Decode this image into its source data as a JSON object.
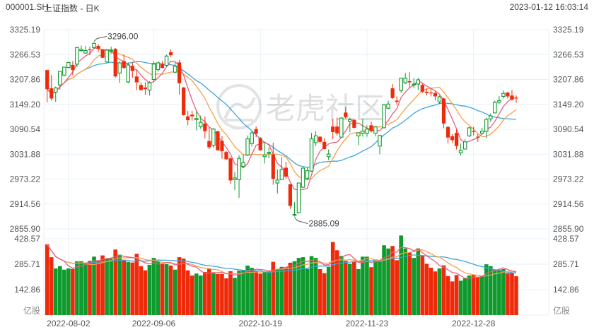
{
  "header": {
    "symbol": "000001.SH",
    "name": "上证指数 - 日K",
    "timestamp": "2023-01-12 16:03:14"
  },
  "watermark": "老虎社区",
  "colors": {
    "up": "#0e9a2c",
    "down": "#ee2a0a",
    "ma_short": "#e8607a",
    "ma_mid": "#f7a04a",
    "ma_long": "#3fa3e0",
    "grid": "#e6f1f8",
    "axis_text": "#555555"
  },
  "chart_data": {
    "type": "candlestick",
    "price_axis": {
      "ticks": [
        "3325.19",
        "3266.53",
        "3207.86",
        "3149.20",
        "3090.54",
        "3031.88",
        "2973.22",
        "2914.56",
        "2855.90"
      ],
      "range": [
        2855.9,
        3325.19
      ]
    },
    "volume_axis": {
      "ticks": [
        "428.57",
        "285.71",
        "142.86"
      ],
      "unit": "亿股",
      "range": [
        0,
        571.43
      ]
    },
    "x_labels": [
      {
        "index": 5,
        "label": "2022-08-02"
      },
      {
        "index": 25,
        "label": "2022-09-06"
      },
      {
        "index": 50,
        "label": "2022-10-19"
      },
      {
        "index": 75,
        "label": "2022-11-23"
      },
      {
        "index": 100,
        "label": "2022-12-28"
      }
    ],
    "annotations": [
      {
        "index": 11,
        "value": 3296.0,
        "label": "3296.00",
        "kind": "high"
      },
      {
        "index": 58,
        "value": 2885.09,
        "label": "2885.09",
        "kind": "low"
      }
    ],
    "candles_ohlc": [
      [
        3230,
        3231,
        3154,
        3185
      ],
      [
        3187,
        3218,
        3158,
        3163
      ],
      [
        3178,
        3191,
        3155,
        3188
      ],
      [
        3195,
        3227,
        3184,
        3227
      ],
      [
        3218,
        3238,
        3215,
        3237
      ],
      [
        3236,
        3249,
        3234,
        3248
      ],
      [
        3242,
        3251,
        3218,
        3230
      ],
      [
        3244,
        3284,
        3237,
        3283
      ],
      [
        3276,
        3288,
        3273,
        3279
      ],
      [
        3270,
        3287,
        3269,
        3276
      ],
      [
        3279,
        3285,
        3265,
        3278
      ],
      [
        3283,
        3296,
        3279,
        3293
      ],
      [
        3287,
        3291,
        3273,
        3280
      ],
      [
        3279,
        3280,
        3258,
        3259
      ],
      [
        3249,
        3280,
        3248,
        3277
      ],
      [
        3275,
        3285,
        3268,
        3277
      ],
      [
        3280,
        3282,
        3212,
        3215
      ],
      [
        3223,
        3251,
        3200,
        3247
      ],
      [
        3251,
        3266,
        3233,
        3235
      ],
      [
        3202,
        3248,
        3199,
        3242
      ],
      [
        3240,
        3248,
        3212,
        3228
      ],
      [
        3215,
        3230,
        3183,
        3201
      ],
      [
        3195,
        3201,
        3182,
        3183
      ],
      [
        3189,
        3201,
        3172,
        3185
      ],
      [
        3183,
        3204,
        3170,
        3200
      ],
      [
        3208,
        3251,
        3202,
        3244
      ],
      [
        3231,
        3251,
        3226,
        3247
      ],
      [
        3245,
        3251,
        3234,
        3235
      ],
      [
        3241,
        3266,
        3239,
        3263
      ],
      [
        3272,
        3279,
        3261,
        3265
      ],
      [
        3225,
        3248,
        3222,
        3239
      ],
      [
        3248,
        3254,
        3172,
        3199
      ],
      [
        3189,
        3190,
        3123,
        3124
      ],
      [
        3121,
        3134,
        3100,
        3112
      ],
      [
        3125,
        3134,
        3111,
        3121
      ],
      [
        3113,
        3133,
        3088,
        3116
      ],
      [
        3097,
        3123,
        3092,
        3107
      ],
      [
        3104,
        3121,
        3069,
        3086
      ],
      [
        3063,
        3096,
        3044,
        3048
      ],
      [
        3053,
        3093,
        3046,
        3091
      ],
      [
        3086,
        3087,
        3040,
        3041
      ],
      [
        3063,
        3074,
        3021,
        3039
      ],
      [
        3037,
        3040,
        3018,
        3020
      ],
      [
        3022,
        3025,
        2962,
        2970
      ],
      [
        2972,
        2990,
        2947,
        2976
      ],
      [
        2972,
        3029,
        2929,
        3022
      ],
      [
        3003,
        3032,
        3001,
        3012
      ],
      [
        3030,
        3076,
        3029,
        3068
      ],
      [
        3057,
        3086,
        3050,
        3082
      ],
      [
        3091,
        3097,
        3072,
        3080
      ],
      [
        3070,
        3072,
        3040,
        3041
      ],
      [
        3026,
        3061,
        3010,
        3030
      ],
      [
        3034,
        3048,
        3022,
        3036
      ],
      [
        3031,
        3059,
        2960,
        2974
      ],
      [
        2964,
        2996,
        2939,
        2971
      ],
      [
        2972,
        3025,
        2971,
        2996
      ],
      [
        3000,
        3014,
        2974,
        2979
      ],
      [
        2961,
        2962,
        2903,
        2910
      ],
      [
        2888,
        2919,
        2885.09,
        2890
      ],
      [
        2894,
        2965,
        2892,
        2964
      ],
      [
        2954,
        3001,
        2952,
        2999
      ],
      [
        2975,
        3001,
        2971,
        2993
      ],
      [
        2992,
        3082,
        2990,
        3068
      ],
      [
        3059,
        3086,
        3051,
        3075
      ],
      [
        3073,
        3074,
        3057,
        3061
      ],
      [
        3061,
        3070,
        3043,
        3044
      ],
      [
        3026,
        3043,
        3018,
        3032
      ],
      [
        3097,
        3115,
        3067,
        3084
      ],
      [
        3097,
        3118,
        3076,
        3081
      ],
      [
        3072,
        3119,
        3072,
        3117
      ],
      [
        3130,
        3143,
        3115,
        3119
      ],
      [
        3109,
        3118,
        3084,
        3113
      ],
      [
        3113,
        3114,
        3093,
        3094
      ],
      [
        3075,
        3083,
        3053,
        3082
      ],
      [
        3081,
        3115,
        3073,
        3086
      ],
      [
        3081,
        3100,
        3073,
        3091
      ],
      [
        3100,
        3109,
        3083,
        3086
      ],
      [
        3081,
        3098,
        3074,
        3096
      ],
      [
        3051,
        3077,
        3032,
        3076
      ],
      [
        3094,
        3150,
        3093,
        3148
      ],
      [
        3140,
        3158,
        3138,
        3150
      ],
      [
        3187,
        3197,
        3162,
        3164
      ],
      [
        3158,
        3168,
        3148,
        3155
      ],
      [
        3182,
        3212,
        3176,
        3211
      ],
      [
        3200,
        3223,
        3197,
        3211
      ],
      [
        3204,
        3225,
        3189,
        3201
      ],
      [
        3196,
        3211,
        3187,
        3197
      ],
      [
        3197,
        3212,
        3183,
        3207
      ],
      [
        3195,
        3198,
        3176,
        3179
      ],
      [
        3179,
        3187,
        3170,
        3176
      ],
      [
        3177,
        3187,
        3168,
        3176
      ],
      [
        3176,
        3180,
        3158,
        3168
      ],
      [
        3155,
        3170,
        3151,
        3167
      ],
      [
        3163,
        3165,
        3093,
        3104
      ],
      [
        3096,
        3098,
        3057,
        3071
      ],
      [
        3074,
        3079,
        3058,
        3065
      ],
      [
        3082,
        3090,
        3043,
        3051
      ],
      [
        3035,
        3057,
        3028,
        3041
      ],
      [
        3044,
        3067,
        3043,
        3061
      ],
      [
        3075,
        3096,
        3072,
        3094
      ],
      [
        3086,
        3096,
        3076,
        3085
      ],
      [
        3073,
        3079,
        3061,
        3071
      ],
      [
        3081,
        3094,
        3079,
        3086
      ],
      [
        3086,
        3118,
        3069,
        3114
      ],
      [
        3115,
        3128,
        3108,
        3122
      ],
      [
        3129,
        3158,
        3128,
        3154
      ],
      [
        3154,
        3169,
        3150,
        3158
      ],
      [
        3168,
        3182,
        3163,
        3175
      ],
      [
        3177,
        3179,
        3163,
        3168
      ],
      [
        3170,
        3183,
        3159,
        3160
      ],
      [
        3165,
        3170,
        3153,
        3163
      ]
    ],
    "volume": [
      397,
      325,
      262,
      275,
      255,
      262,
      259,
      302,
      302,
      291,
      304,
      328,
      304,
      335,
      317,
      317,
      368,
      339,
      310,
      299,
      295,
      344,
      275,
      251,
      282,
      321,
      302,
      286,
      286,
      278,
      255,
      325,
      317,
      251,
      222,
      233,
      222,
      242,
      262,
      235,
      231,
      231,
      206,
      246,
      209,
      249,
      251,
      278,
      265,
      249,
      233,
      242,
      245,
      299,
      255,
      271,
      269,
      294,
      302,
      321,
      325,
      259,
      331,
      321,
      258,
      235,
      271,
      410,
      364,
      332,
      304,
      288,
      299,
      258,
      328,
      328,
      269,
      312,
      304,
      392,
      374,
      388,
      308,
      447,
      374,
      352,
      321,
      374,
      332,
      288,
      266,
      245,
      262,
      279,
      219,
      189,
      225,
      193,
      206,
      222,
      225,
      215,
      218,
      285,
      275,
      255,
      255,
      258,
      235,
      238,
      218
    ]
  }
}
